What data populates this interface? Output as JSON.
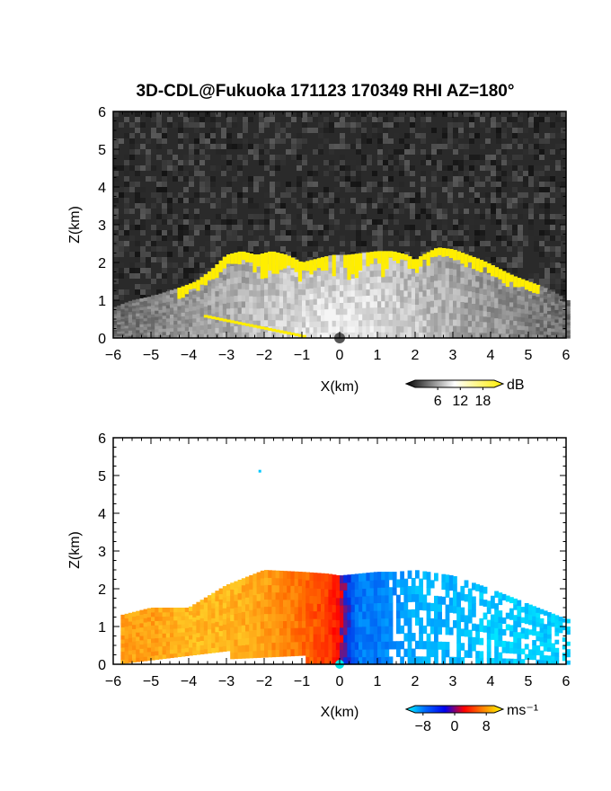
{
  "figure": {
    "title": "3D-CDL@Fukuoka 171123 170349 RHI AZ=180°"
  },
  "chart_data": [
    {
      "type": "heatmap",
      "panel": "top",
      "quantity": "reflectivity",
      "xlabel": "X(km)",
      "ylabel": "Z(km)",
      "xlim": [
        -6,
        6
      ],
      "ylim": [
        0,
        6
      ],
      "x_ticks": [
        "−6",
        "−5",
        "−4",
        "−3",
        "−2",
        "−1",
        "0",
        "1",
        "2",
        "3",
        "4",
        "5",
        "6"
      ],
      "y_ticks": [
        "0",
        "1",
        "2",
        "3",
        "4",
        "5",
        "6"
      ],
      "grid": false,
      "background_color": "#2a2a2a",
      "echo_top_profile": {
        "x": [
          -6.0,
          -5.5,
          -5.0,
          -4.5,
          -4.2,
          -3.8,
          -3.4,
          -3.0,
          -2.6,
          -2.2,
          -1.8,
          -1.4,
          -1.0,
          -0.6,
          -0.2,
          0.2,
          0.6,
          1.0,
          1.4,
          1.8,
          2.0,
          2.2,
          2.6,
          3.0,
          3.4,
          3.8,
          4.2,
          4.6,
          5.0,
          5.4,
          5.8,
          6.0
        ],
        "z": [
          0.8,
          1.0,
          1.1,
          1.25,
          1.35,
          1.5,
          1.8,
          2.2,
          2.3,
          2.2,
          2.3,
          2.2,
          2.0,
          2.1,
          2.2,
          2.2,
          2.25,
          2.3,
          2.3,
          2.2,
          2.05,
          2.2,
          2.4,
          2.35,
          2.2,
          2.05,
          1.85,
          1.65,
          1.5,
          1.35,
          1.15,
          1.0
        ]
      },
      "high_echo_threshold": 18,
      "high_echo_color": "#ffee00",
      "colorbar": {
        "ticks": [
          "6",
          "12",
          "18"
        ],
        "unit": "dB",
        "range": [
          0,
          21
        ],
        "colors": [
          "#000000",
          "#ffffff",
          "#ffee00"
        ]
      }
    },
    {
      "type": "heatmap",
      "panel": "bottom",
      "quantity": "radial velocity",
      "xlabel": "X(km)",
      "ylabel": "Z(km)",
      "xlim": [
        -6,
        6
      ],
      "ylim": [
        0,
        6
      ],
      "x_ticks": [
        "−6",
        "−5",
        "−4",
        "−3",
        "−2",
        "−1",
        "0",
        "1",
        "2",
        "3",
        "4",
        "5",
        "6"
      ],
      "y_ticks": [
        "0",
        "1",
        "2",
        "3",
        "4",
        "5",
        "6"
      ],
      "grid": false,
      "background_color": "#ffffff",
      "velocity_field": {
        "x": [
          -5.8,
          -5.0,
          -4.0,
          -3.0,
          -2.0,
          -1.0,
          -0.3,
          0.0,
          0.5,
          1.0,
          1.5,
          2.0,
          3.0,
          4.0,
          5.0,
          6.0
        ],
        "v": [
          6,
          6,
          7,
          7,
          6,
          4,
          2,
          0,
          -5,
          -5,
          -6,
          -7,
          -7,
          -8,
          -8,
          -8
        ],
        "top_z": [
          1.3,
          1.5,
          1.5,
          2.1,
          2.5,
          2.45,
          2.4,
          2.35,
          2.4,
          2.45,
          2.45,
          2.5,
          2.35,
          2.0,
          1.6,
          1.2
        ]
      },
      "colorbar": {
        "ticks": [
          "−8",
          "0",
          "8"
        ],
        "unit": "ms⁻¹",
        "range": [
          -10,
          10
        ],
        "colors": [
          "#00ffff",
          "#0066ff",
          "#0000ee",
          "#ff0000",
          "#ff8800",
          "#ffff00"
        ]
      }
    }
  ]
}
